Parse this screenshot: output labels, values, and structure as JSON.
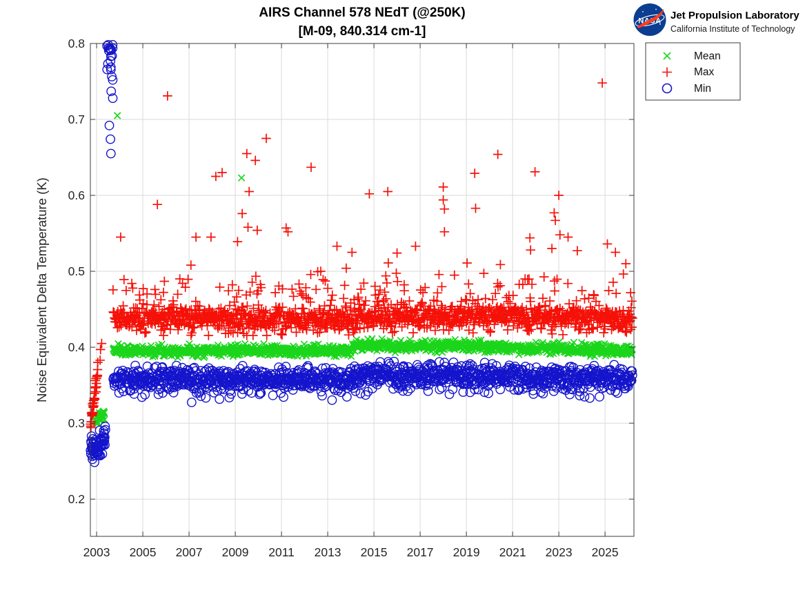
{
  "header": {
    "title_line1": "AIRS Channel 578 NEdT (@250K)",
    "title_line2": "[M-09, 840.314 cm-1]",
    "logo": {
      "org": "NASA",
      "name": "Jet Propulsion Laboratory",
      "sub": "California Institute of Technology",
      "nasa_blue": "#0b3d91",
      "nasa_red": "#fc3d21"
    }
  },
  "legend": {
    "items": [
      {
        "label": "Mean",
        "marker": "x",
        "color": "#1ad51a"
      },
      {
        "label": "Max",
        "marker": "plus",
        "color": "#f51108"
      },
      {
        "label": "Min",
        "marker": "circle",
        "color": "#1414cc"
      }
    ]
  },
  "chart_data": {
    "type": "scatter",
    "title": "AIRS Channel 578 NEdT (@250K) [M-09, 840.314 cm-1]",
    "xlabel": "",
    "ylabel": "Noise Equivalent Delta Temperature (K)",
    "xlim": [
      2002.73,
      2026.25
    ],
    "ylim": [
      0.151,
      0.8
    ],
    "xticks": [
      2003,
      2005,
      2007,
      2009,
      2011,
      2013,
      2015,
      2017,
      2019,
      2021,
      2023,
      2025
    ],
    "yticks": [
      0.2,
      0.3,
      0.4,
      0.5,
      0.6,
      0.7,
      0.8
    ],
    "grid": true,
    "legend_position": "outside-northeast",
    "seed": 7,
    "series": [
      {
        "name": "Mean",
        "marker": "x",
        "color": "#1ad51a",
        "stroke_width": 1.7,
        "marker_size": 4.6,
        "main_band": {
          "t0": 2003.72,
          "t1": 2026.2,
          "dt": 0.018,
          "levels": [
            [
              2003.72,
              0.3955
            ],
            [
              2014.09,
              0.3955
            ],
            [
              2014.1,
              0.4025
            ],
            [
              2019.0,
              0.401
            ],
            [
              2026.2,
              0.3955
            ]
          ],
          "sigma": 0.0035,
          "clip": 0.009
        },
        "early_cluster": {
          "t0": 2002.95,
          "t1": 2003.35,
          "dt": 0.012,
          "v0": 0.303,
          "v1": 0.312,
          "sigma": 0.0035,
          "clip": 0.008
        },
        "outliers": [
          [
            2003.9,
            0.705
          ],
          [
            2009.27,
            0.623
          ]
        ]
      },
      {
        "name": "Max",
        "marker": "plus",
        "color": "#f51108",
        "stroke_width": 1.7,
        "marker_size": 6.8,
        "main_band": {
          "t0": 2003.72,
          "t1": 2026.2,
          "dt": 0.018,
          "levels": [
            [
              2003.72,
              0.4375
            ],
            [
              2014.09,
              0.4375
            ],
            [
              2014.1,
              0.4415
            ],
            [
              2021.0,
              0.4405
            ],
            [
              2026.2,
              0.436
            ]
          ],
          "sigma": 0.0085,
          "clip": 0.022
        },
        "spray": {
          "prob": 0.09,
          "base": 0.46,
          "scale": 0.021,
          "max": 0.548
        },
        "early_cluster": {
          "t0": 2002.74,
          "t1": 2003.06,
          "dt": 0.008,
          "v0": 0.298,
          "v1": 0.37,
          "sigma": 0.007,
          "clip": 0.018
        },
        "extra_points": [
          [
            2003.22,
            0.405
          ],
          [
            2003.17,
            0.397
          ],
          [
            2003.15,
            0.383
          ]
        ],
        "outliers": [
          [
            2004.04,
            0.545
          ],
          [
            2005.63,
            0.588
          ],
          [
            2006.07,
            0.731
          ],
          [
            2006.6,
            0.49
          ],
          [
            2007.3,
            0.545
          ],
          [
            2007.95,
            0.545
          ],
          [
            2008.16,
            0.625
          ],
          [
            2008.43,
            0.63
          ],
          [
            2009.1,
            0.539
          ],
          [
            2009.3,
            0.576
          ],
          [
            2009.5,
            0.655
          ],
          [
            2009.55,
            0.558
          ],
          [
            2009.6,
            0.605
          ],
          [
            2009.87,
            0.646
          ],
          [
            2009.95,
            0.554
          ],
          [
            2010.34,
            0.675
          ],
          [
            2011.2,
            0.557
          ],
          [
            2011.28,
            0.552
          ],
          [
            2012.28,
            0.637
          ],
          [
            2012.7,
            0.5
          ],
          [
            2012.8,
            0.489
          ],
          [
            2013.4,
            0.533
          ],
          [
            2013.8,
            0.504
          ],
          [
            2014.05,
            0.525
          ],
          [
            2014.8,
            0.602
          ],
          [
            2015.6,
            0.605
          ],
          [
            2015.62,
            0.511
          ],
          [
            2016.0,
            0.524
          ],
          [
            2016.8,
            0.533
          ],
          [
            2018.0,
            0.611
          ],
          [
            2018.0,
            0.594
          ],
          [
            2018.05,
            0.582
          ],
          [
            2018.05,
            0.552
          ],
          [
            2019.36,
            0.629
          ],
          [
            2019.4,
            0.583
          ],
          [
            2020.36,
            0.654
          ],
          [
            2021.75,
            0.544
          ],
          [
            2021.78,
            0.528
          ],
          [
            2021.97,
            0.631
          ],
          [
            2022.7,
            0.53
          ],
          [
            2022.8,
            0.577
          ],
          [
            2022.85,
            0.567
          ],
          [
            2023.0,
            0.6
          ],
          [
            2023.05,
            0.548
          ],
          [
            2023.4,
            0.545
          ],
          [
            2024.88,
            0.748
          ],
          [
            2025.1,
            0.536
          ],
          [
            2025.45,
            0.525
          ],
          [
            2025.9,
            0.51
          ]
        ]
      },
      {
        "name": "Min",
        "marker": "circle",
        "color": "#1414cc",
        "stroke_width": 1.4,
        "marker_size": 6.2,
        "main_band": {
          "t0": 2003.72,
          "t1": 2026.2,
          "dt": 0.018,
          "levels": [
            [
              2003.72,
              0.358
            ],
            [
              2014.09,
              0.3575
            ],
            [
              2014.1,
              0.3635
            ],
            [
              2019.0,
              0.3625
            ],
            [
              2026.2,
              0.3585
            ]
          ],
          "sigma": 0.0075,
          "clip": 0.018
        },
        "dip": {
          "prob": 0.05,
          "depth": 0.017,
          "scale": 0.005
        },
        "early_cluster": {
          "t0": 2002.74,
          "t1": 2003.38,
          "dt": 0.01,
          "v0": 0.262,
          "v1": 0.276,
          "sigma": 0.009,
          "clip": 0.02
        },
        "high_cluster": {
          "t0": 2003.44,
          "t1": 2003.7,
          "n": 20,
          "vmin": 0.746,
          "vmax": 0.801
        },
        "outliers": [
          [
            2003.63,
            0.737
          ],
          [
            2003.7,
            0.728
          ],
          [
            2003.55,
            0.692
          ],
          [
            2003.6,
            0.674
          ],
          [
            2003.62,
            0.655
          ]
        ]
      }
    ]
  }
}
